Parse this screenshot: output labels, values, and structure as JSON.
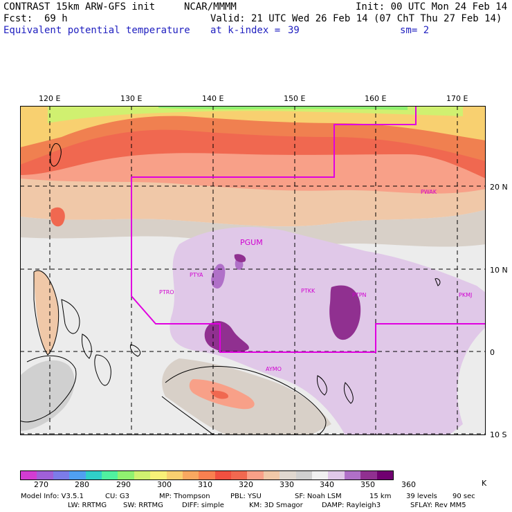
{
  "header": {
    "title": "CONTRAST 15km ARW-GFS init",
    "center": "NCAR/MMMM",
    "init": "Init: 00 UTC Mon 24 Feb 14",
    "fcst_label": "Fcst:",
    "fcst_value": "69 h",
    "valid": "Valid: 21 UTC Wed 26 Feb 14 (07 ChT Thu 27 Feb 14)",
    "field": "Equivalent potential temperature",
    "level": "at k-index =",
    "level_value": "39",
    "smooth": "sm= 2"
  },
  "map": {
    "lon_labels": [
      "120 E",
      "130 E",
      "140 E",
      "150 E",
      "160 E",
      "170 E"
    ],
    "lat_labels": [
      "20 N",
      "10 N",
      "0",
      "10 S"
    ],
    "stations": [
      "PWAK",
      "PGUM",
      "PTYA",
      "PTRO",
      "PTKK",
      "PTPN",
      "PKMJ",
      "AYMO"
    ]
  },
  "colorbar": {
    "colors": [
      "#d23cd2",
      "#a060d8",
      "#7c7ce8",
      "#50a0f0",
      "#30d0c8",
      "#50f0a0",
      "#90f070",
      "#d0f070",
      "#f8f078",
      "#f8d070",
      "#f8a860",
      "#f88050",
      "#f05040",
      "#f06850",
      "#f8a088",
      "#f0c8a8",
      "#e0d8d0",
      "#d0d0d0",
      "#f0f0f0",
      "#e0c8e8",
      "#b070c8",
      "#903090",
      "#700070"
    ],
    "labels": [
      "270",
      "280",
      "290",
      "300",
      "310",
      "320",
      "330",
      "340",
      "350",
      "360",
      "K"
    ]
  },
  "footer": {
    "line1": [
      "Model Info: V3.5.1",
      "CU: G3",
      "MP: Thompson",
      "PBL: YSU",
      "SF: Noah LSM",
      "15 km",
      "39 levels",
      "90 sec"
    ],
    "line2": [
      "LW: RRTMG",
      "SW: RRTMG",
      "DIFF: simple",
      "KM: 3D Smagor",
      "DAMP: Rayleigh3",
      "SFLAY: Rev MM5"
    ]
  }
}
